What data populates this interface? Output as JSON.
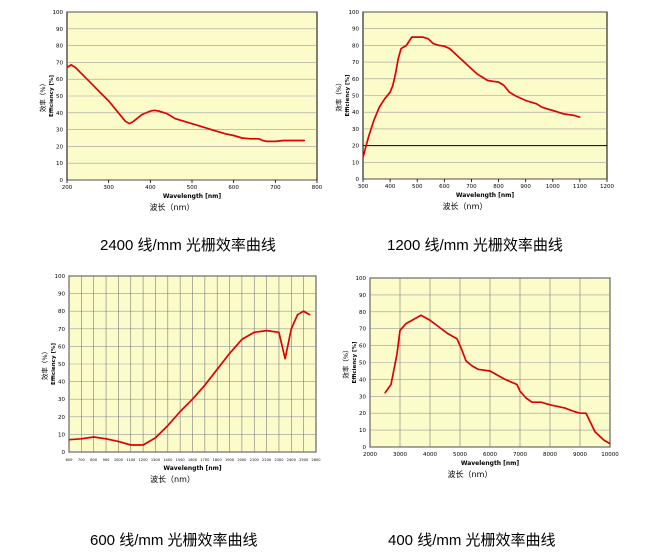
{
  "chart_data": [
    {
      "type": "line",
      "ylabel_cn": "效率（%）",
      "ylabel_en": "Efficiency [%]",
      "xlabel_en": "Wavelength [nm]",
      "xlabel_cn": "波长（nm）",
      "caption": "2400 线/mm 光栅效率曲线",
      "xlim": [
        200,
        800
      ],
      "ylim": [
        0,
        100
      ],
      "xticks": [
        "200",
        "300",
        "400",
        "500",
        "600",
        "700",
        "800"
      ],
      "yticks": [
        "0",
        "10",
        "20",
        "30",
        "40",
        "50",
        "60",
        "70",
        "80",
        "90",
        "100"
      ],
      "grid": "horizontal",
      "plot_bg": "#fcfccb",
      "line_color": "#e00000",
      "series": [
        {
          "x": [
            200,
            210,
            220,
            240,
            260,
            280,
            300,
            320,
            340,
            350,
            360,
            380,
            400,
            410,
            420,
            440,
            460,
            480,
            500,
            520,
            540,
            560,
            580,
            600,
            620,
            640,
            650,
            660,
            670,
            680,
            700,
            720,
            740,
            760,
            770
          ],
          "y": [
            67,
            68.5,
            67,
            62,
            57,
            52,
            47,
            41,
            35,
            33.5,
            35,
            39,
            41,
            41.5,
            41,
            39.5,
            36.5,
            35,
            33.5,
            32,
            30.5,
            29,
            27.5,
            26.5,
            25,
            24.5,
            24.5,
            24.5,
            23.5,
            23,
            23,
            23.5,
            23.5,
            23.5,
            23.5
          ]
        }
      ]
    },
    {
      "type": "line",
      "ylabel_cn": "效率（%）",
      "ylabel_en": "Efficiency [%]",
      "xlabel_en": "Wavelength [nm]",
      "xlabel_cn": "波长（nm）",
      "caption": "1200 线/mm 光栅效率曲线",
      "xlim": [
        300,
        1200
      ],
      "ylim": [
        0,
        100
      ],
      "xticks": [
        "300",
        "400",
        "500",
        "600",
        "700",
        "800",
        "900",
        "1000",
        "1100",
        "1200"
      ],
      "yticks": [
        "0",
        "10",
        "20",
        "30",
        "40",
        "50",
        "60",
        "70",
        "80",
        "90",
        "100"
      ],
      "grid": "horizontal",
      "plot_bg": "#fcfccb",
      "line_color": "#e00000",
      "series": [
        {
          "x": [
            300,
            320,
            340,
            360,
            380,
            400,
            410,
            420,
            430,
            440,
            460,
            480,
            500,
            520,
            540,
            560,
            580,
            600,
            620,
            640,
            660,
            680,
            700,
            720,
            740,
            760,
            780,
            800,
            820,
            840,
            860,
            880,
            900,
            920,
            940,
            960,
            980,
            1000,
            1020,
            1040,
            1060,
            1080,
            1100
          ],
          "y": [
            13,
            25,
            35,
            43,
            48,
            52,
            56,
            63,
            72,
            78,
            80,
            85,
            85,
            85,
            84,
            81,
            80,
            79.5,
            78,
            75,
            72,
            69,
            66,
            63,
            61,
            59,
            58.5,
            58,
            56,
            52,
            50,
            48.5,
            47,
            46,
            45,
            43,
            42,
            41,
            40,
            39,
            38.5,
            38,
            37
          ]
        }
      ]
    },
    {
      "type": "line",
      "ylabel_cn": "效率（%）",
      "ylabel_en": "Efficiency [%]",
      "xlabel_en": "Wavelength [nm]",
      "xlabel_cn": "波长（nm）",
      "caption": "600 线/mm 光栅效率曲线",
      "xlim": [
        600,
        2600
      ],
      "ylim": [
        0,
        100
      ],
      "xticks": [
        "600",
        "700",
        "800",
        "900",
        "1000",
        "1100",
        "1200",
        "1300",
        "1400",
        "1500",
        "1600",
        "1700",
        "1800",
        "1900",
        "2000",
        "2100",
        "2200",
        "2300",
        "2400",
        "2500",
        "2600"
      ],
      "yticks": [
        "0",
        "10",
        "20",
        "30",
        "40",
        "50",
        "60",
        "70",
        "80",
        "90",
        "100"
      ],
      "grid": "both",
      "plot_bg": "#fcfccb",
      "line_color": "#e00000",
      "series": [
        {
          "x": [
            600,
            700,
            800,
            900,
            1000,
            1100,
            1200,
            1300,
            1400,
            1500,
            1600,
            1700,
            1800,
            1900,
            2000,
            2100,
            2200,
            2300,
            2350,
            2400,
            2450,
            2500,
            2550
          ],
          "y": [
            7,
            7.5,
            8.5,
            7.5,
            6,
            4,
            4,
            8,
            15,
            23,
            30,
            38,
            47,
            56,
            64,
            68,
            69,
            68,
            53,
            70,
            78,
            80,
            78
          ]
        }
      ]
    },
    {
      "type": "line",
      "ylabel_cn": "效率（%）",
      "ylabel_en": "Efficiency [%]",
      "xlabel_en": "Wavelength [nm]",
      "xlabel_cn": "波长（nm）",
      "caption": "400 线/mm 光栅效率曲线",
      "xlim": [
        2000,
        10000
      ],
      "ylim": [
        0,
        100
      ],
      "xticks": [
        "2000",
        "3000",
        "4000",
        "5000",
        "6000",
        "7000",
        "8000",
        "9000",
        "10000"
      ],
      "yticks": [
        "0",
        "10",
        "20",
        "30",
        "40",
        "50",
        "60",
        "70",
        "80",
        "90",
        "100"
      ],
      "grid": "both",
      "plot_bg": "#fcfccb",
      "line_color": "#e00000",
      "series": [
        {
          "x": [
            2500,
            2700,
            2900,
            3000,
            3200,
            3500,
            3700,
            4000,
            4300,
            4600,
            4900,
            5050,
            5200,
            5400,
            5600,
            6000,
            6500,
            6900,
            7000,
            7200,
            7400,
            7700,
            8000,
            8500,
            8800,
            9000,
            9200,
            9500,
            9800,
            10000
          ],
          "y": [
            32,
            37,
            55,
            69,
            73,
            76,
            78,
            75,
            71,
            67,
            64,
            58,
            51,
            48,
            46,
            45,
            40,
            37,
            33,
            29,
            26.5,
            26.5,
            25,
            23,
            21,
            20,
            20,
            9,
            4,
            2
          ]
        }
      ]
    }
  ]
}
